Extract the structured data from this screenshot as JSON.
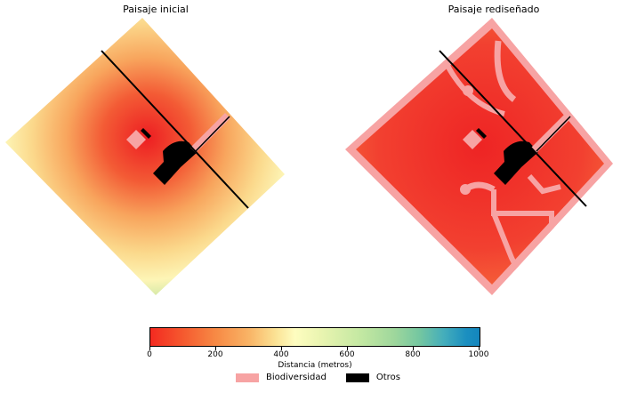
{
  "chart_data": {
    "type": "heatmap",
    "panels": [
      {
        "title": "Paisaje inicial"
      },
      {
        "title": "Paisaje rediseñado"
      }
    ],
    "colorbar": {
      "label": "Distancia (metros)",
      "range": [
        0,
        1000
      ],
      "ticks": [
        "0",
        "200",
        "400",
        "600",
        "800",
        "1000"
      ],
      "colormap": "RdYlGn-to-blue (red = near, blue = far)"
    },
    "legend": [
      {
        "label": "Biodiversidad",
        "color": "#f7a3a3"
      },
      {
        "label": "Otros",
        "color": "#000000"
      }
    ]
  }
}
